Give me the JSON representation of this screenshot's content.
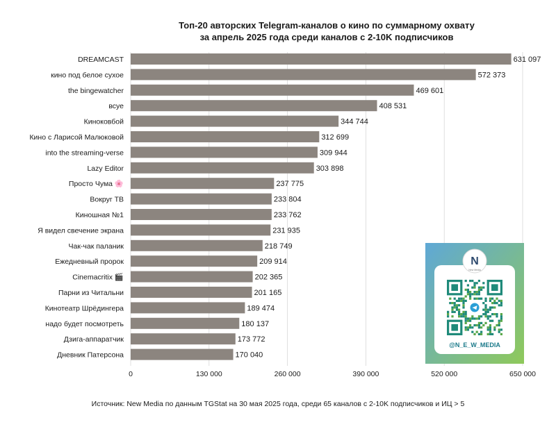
{
  "chart_data": {
    "type": "bar",
    "orientation": "horizontal",
    "title_lines": [
      "Топ-20 авторских Telegram-каналов о кино по суммарному охвату",
      "за апрель 2025 года среди каналов с 2-10K подписчиков"
    ],
    "categories": [
      "DREAMCAST",
      "кино под белое сухое",
      "the bingewatcher",
      "всуе",
      "Киноковбой",
      "Кино с Ларисой Малюковой",
      "into the streaming-verse",
      "Lazy Editor",
      "Просто Чума 🌸",
      "Вокруг ТВ",
      "Киношная №1",
      "Я видел свечение экрана",
      "Чак-чак паланик",
      "Ежедневный пророк",
      "Cinemacritix 🎬",
      "Парни из Читальни",
      "Кинотеатр Шрёдингера",
      "надо будет посмотреть",
      "Дзига-аппаратчик",
      "Дневник Патерсона"
    ],
    "values": [
      631097,
      572373,
      469601,
      408531,
      344744,
      312699,
      309944,
      303898,
      237775,
      233804,
      233762,
      231935,
      218749,
      209914,
      202365,
      201165,
      189474,
      180137,
      173772,
      170040
    ],
    "value_labels": [
      "631 097",
      "572 373",
      "469 601",
      "408 531",
      "344 744",
      "312 699",
      "309 944",
      "303 898",
      "237 775",
      "233 804",
      "233 762",
      "231 935",
      "218 749",
      "209 914",
      "202 365",
      "201 165",
      "189 474",
      "180 137",
      "173 772",
      "170 040"
    ],
    "xlim": [
      0,
      650000
    ],
    "xticks": [
      0,
      130000,
      260000,
      390000,
      520000,
      650000
    ],
    "xtick_labels": [
      "0",
      "130 000",
      "260 000",
      "390 000",
      "520 000",
      "650 000"
    ],
    "grid": "vertical",
    "bar_color": "#8c857f"
  },
  "badge": {
    "brand_letter": "N",
    "brand_small": "New Media",
    "handle": "@N_E_W_MEDIA",
    "gradient_start": "#5fa8d6",
    "gradient_end": "#8fc95a"
  },
  "footer": {
    "source": "Источник: New Media по данным TGStat на 30 мая 2025 года, среди 65 каналов с 2-10K подписчиков и ИЦ > 5"
  }
}
